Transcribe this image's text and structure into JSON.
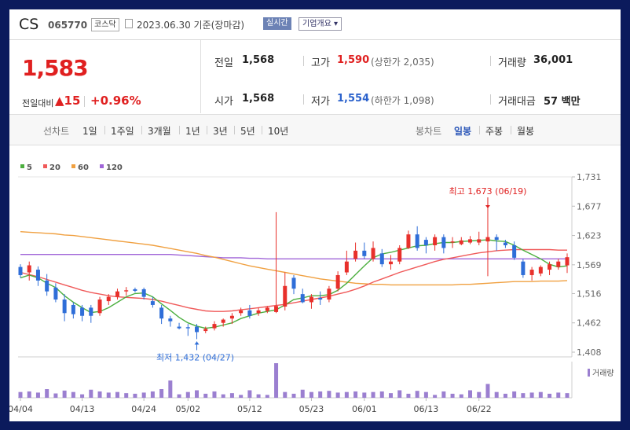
{
  "header": {
    "name": "CS",
    "code": "065770",
    "market": "코스닥",
    "date": "2023.06.30",
    "date_suffix": "기준(장마감)",
    "realtime_label": "실시간",
    "overview_label": "기업개요"
  },
  "quote": {
    "price": "1,583",
    "change_label": "전일대비",
    "change_value": "15",
    "change_pct": "+0.96%",
    "prev_close_label": "전일",
    "prev_close": "1,568",
    "open_label": "시가",
    "open": "1,568",
    "high_label": "고가",
    "high": "1,590",
    "upper_limit_text": "(상한가 2,035)",
    "low_label": "저가",
    "low": "1,554",
    "lower_limit_text": "(하한가 1,098)",
    "volume_label": "거래량",
    "volume": "36,001",
    "amount_label": "거래대금",
    "amount": "57 백만"
  },
  "period_bar": {
    "line_chart_label": "선차트",
    "periods": [
      "1일",
      "1주일",
      "3개월",
      "1년",
      "3년",
      "5년",
      "10년"
    ],
    "candle_label": "봉차트",
    "candle_periods": [
      "일봉",
      "주봉",
      "월봉"
    ],
    "selected": "일봉"
  },
  "chart_data": {
    "type": "candlestick",
    "ma_legend": [
      {
        "name": "5",
        "color": "#4caf3f"
      },
      {
        "name": "20",
        "color": "#f05a5a"
      },
      {
        "name": "60",
        "color": "#f0a040"
      },
      {
        "name": "120",
        "color": "#a065d8"
      }
    ],
    "y_ticks": [
      "1,731",
      "1,677",
      "1,623",
      "1,569",
      "1,516",
      "1,462",
      "1,408"
    ],
    "ylim": [
      1408,
      1731
    ],
    "x_tick_labels": [
      "04/04",
      "04/13",
      "04/24",
      "05/02",
      "05/12",
      "05/23",
      "06/01",
      "06/13",
      "06/22"
    ],
    "x_tick_index": [
      0,
      7,
      14,
      19,
      26,
      33,
      39,
      46,
      52
    ],
    "candles": [
      [
        1565,
        1570,
        1545,
        1550
      ],
      [
        1555,
        1575,
        1540,
        1568
      ],
      [
        1560,
        1566,
        1530,
        1540
      ],
      [
        1540,
        1552,
        1512,
        1520
      ],
      [
        1527,
        1535,
        1500,
        1505
      ],
      [
        1505,
        1515,
        1465,
        1480
      ],
      [
        1495,
        1500,
        1470,
        1478
      ],
      [
        1490,
        1495,
        1465,
        1475
      ],
      [
        1490,
        1495,
        1462,
        1475
      ],
      [
        1480,
        1510,
        1475,
        1505
      ],
      [
        1502,
        1515,
        1495,
        1510
      ],
      [
        1510,
        1525,
        1505,
        1520
      ],
      [
        1520,
        1528,
        1512,
        1522
      ],
      [
        1524,
        1527,
        1518,
        1521
      ],
      [
        1524,
        1527,
        1505,
        1510
      ],
      [
        1502,
        1510,
        1490,
        1495
      ],
      [
        1490,
        1495,
        1460,
        1470
      ],
      [
        1470,
        1475,
        1455,
        1465
      ],
      [
        1455,
        1462,
        1450,
        1452
      ],
      [
        1454,
        1460,
        1438,
        1452
      ],
      [
        1455,
        1460,
        1432,
        1445
      ],
      [
        1447,
        1455,
        1443,
        1451
      ],
      [
        1452,
        1465,
        1448,
        1460
      ],
      [
        1462,
        1470,
        1455,
        1468
      ],
      [
        1470,
        1480,
        1460,
        1475
      ],
      [
        1480,
        1490,
        1475,
        1485
      ],
      [
        1485,
        1495,
        1470,
        1475
      ],
      [
        1480,
        1490,
        1475,
        1485
      ],
      [
        1484,
        1493,
        1480,
        1490
      ],
      [
        1482,
        1666,
        1480,
        1493
      ],
      [
        1492,
        1555,
        1485,
        1530
      ],
      [
        1545,
        1550,
        1515,
        1525
      ],
      [
        1515,
        1525,
        1498,
        1500
      ],
      [
        1500,
        1515,
        1488,
        1510
      ],
      [
        1508,
        1520,
        1495,
        1505
      ],
      [
        1505,
        1530,
        1500,
        1525
      ],
      [
        1525,
        1557,
        1520,
        1550
      ],
      [
        1555,
        1595,
        1550,
        1575
      ],
      [
        1580,
        1610,
        1575,
        1595
      ],
      [
        1595,
        1610,
        1580,
        1585
      ],
      [
        1580,
        1612,
        1575,
        1600
      ],
      [
        1590,
        1598,
        1565,
        1570
      ],
      [
        1570,
        1587,
        1560,
        1575
      ],
      [
        1575,
        1605,
        1570,
        1600
      ],
      [
        1600,
        1632,
        1598,
        1625
      ],
      [
        1625,
        1640,
        1595,
        1600
      ],
      [
        1615,
        1620,
        1590,
        1605
      ],
      [
        1605,
        1625,
        1595,
        1620
      ],
      [
        1620,
        1625,
        1590,
        1600
      ],
      [
        1610,
        1620,
        1600,
        1612
      ],
      [
        1607,
        1620,
        1605,
        1614
      ],
      [
        1610,
        1622,
        1607,
        1616
      ],
      [
        1610,
        1630,
        1605,
        1616
      ],
      [
        1612,
        1673,
        1548,
        1620
      ],
      [
        1620,
        1625,
        1595,
        1615
      ],
      [
        1610,
        1615,
        1600,
        1605
      ],
      [
        1605,
        1612,
        1578,
        1582
      ],
      [
        1575,
        1580,
        1545,
        1550
      ],
      [
        1550,
        1565,
        1540,
        1560
      ],
      [
        1553,
        1568,
        1548,
        1565
      ],
      [
        1560,
        1575,
        1550,
        1570
      ],
      [
        1565,
        1580,
        1560,
        1575
      ],
      [
        1568,
        1590,
        1554,
        1583
      ]
    ],
    "ma5": [
      1545,
      1550,
      1545,
      1535,
      1527,
      1512,
      1500,
      1490,
      1481,
      1483,
      1490,
      1500,
      1510,
      1516,
      1517,
      1510,
      1497,
      1485,
      1472,
      1462,
      1456,
      1452,
      1454,
      1458,
      1462,
      1470,
      1475,
      1480,
      1483,
      1486,
      1495,
      1505,
      1508,
      1512,
      1512,
      1514,
      1522,
      1535,
      1551,
      1567,
      1582,
      1589,
      1592,
      1596,
      1600,
      1604,
      1605,
      1608,
      1610,
      1610,
      1612,
      1613,
      1614,
      1615,
      1613,
      1612,
      1605,
      1596,
      1588,
      1580,
      1570,
      1565,
      1567
    ],
    "ma20": [
      1555,
      1551,
      1547,
      1542,
      1537,
      1532,
      1527,
      1522,
      1518,
      1515,
      1512,
      1510,
      1509,
      1508,
      1507,
      1505,
      1502,
      1498,
      1494,
      1490,
      1487,
      1484,
      1483,
      1483,
      1484,
      1486,
      1488,
      1490,
      1492,
      1494,
      1496,
      1499,
      1502,
      1505,
      1508,
      1511,
      1515,
      1519,
      1524,
      1530,
      1537,
      1543,
      1549,
      1555,
      1560,
      1565,
      1570,
      1575,
      1579,
      1582,
      1585,
      1588,
      1591,
      1593,
      1595,
      1596,
      1597,
      1597,
      1597,
      1597,
      1597,
      1596,
      1596
    ],
    "ma60": [
      1630,
      1629,
      1628,
      1627,
      1626,
      1624,
      1623,
      1621,
      1619,
      1617,
      1615,
      1613,
      1611,
      1609,
      1607,
      1605,
      1602,
      1599,
      1596,
      1593,
      1590,
      1586,
      1583,
      1579,
      1575,
      1571,
      1567,
      1564,
      1561,
      1558,
      1555,
      1552,
      1549,
      1546,
      1543,
      1541,
      1539,
      1537,
      1535,
      1534,
      1533,
      1533,
      1532,
      1532,
      1532,
      1532,
      1532,
      1532,
      1532,
      1532,
      1533,
      1533,
      1534,
      1535,
      1536,
      1537,
      1538,
      1538,
      1538,
      1539,
      1539,
      1539,
      1540
    ],
    "ma120": [
      1588,
      1588,
      1588,
      1588,
      1588,
      1588,
      1588,
      1588,
      1588,
      1588,
      1588,
      1588,
      1588,
      1588,
      1588,
      1588,
      1588,
      1588,
      1587,
      1586,
      1585,
      1584,
      1583,
      1582,
      1582,
      1582,
      1581,
      1581,
      1580,
      1580,
      1580,
      1580,
      1580,
      1580,
      1580,
      1580,
      1580,
      1580,
      1580,
      1580,
      1580,
      1580,
      1580,
      1580,
      1580,
      1580,
      1580,
      1580,
      1580,
      1580,
      1580,
      1580,
      1580,
      1580,
      1580,
      1580,
      1580,
      1580,
      1580,
      1580,
      1580,
      1580,
      1580
    ],
    "volume": [
      20,
      22,
      18,
      30,
      15,
      25,
      20,
      12,
      28,
      22,
      18,
      20,
      16,
      14,
      18,
      22,
      30,
      60,
      12,
      20,
      26,
      14,
      22,
      12,
      16,
      10,
      26,
      12,
      10,
      120,
      20,
      14,
      28,
      20,
      22,
      24,
      18,
      20,
      22,
      18,
      20,
      22,
      16,
      26,
      14,
      24,
      20,
      10,
      22,
      14,
      12,
      26,
      20,
      48,
      20,
      14,
      22,
      16,
      18,
      20,
      14,
      18,
      16
    ],
    "annotations": {
      "high_text": "최고 1,673 (06/19)",
      "high_index": 53,
      "high_value": 1673,
      "low_text": "최저 1,432 (04/27)",
      "low_index": 20,
      "low_value": 1432
    },
    "volume_label": "거래량",
    "colors": {
      "up": "#e8302b",
      "down": "#2f6ed8",
      "ma5": "#4caf3f",
      "ma20": "#f05a5a",
      "ma60": "#f0a040",
      "ma120": "#a065d8",
      "volume": "#9b7fd0"
    }
  }
}
